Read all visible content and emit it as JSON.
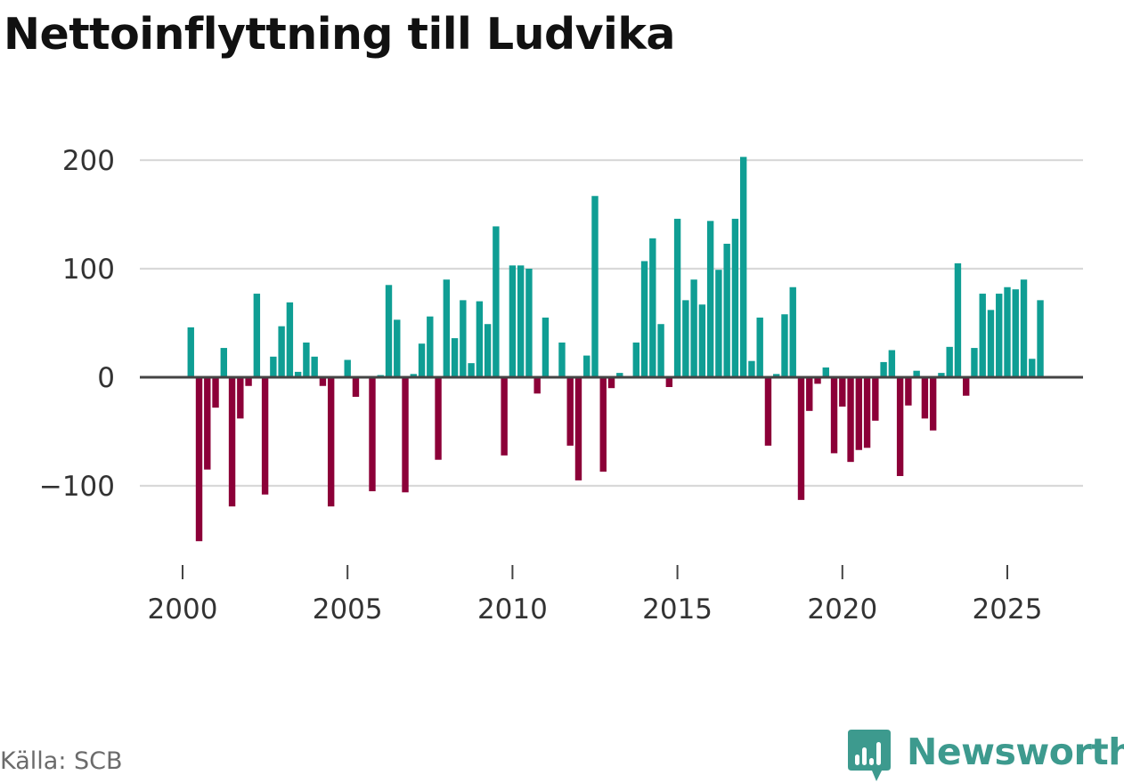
{
  "title": "Nettoinflyttning till Ludvika",
  "source": "Källa: SCB",
  "brand": {
    "name": "Newsworthy",
    "icon": "newsworthy-logo-icon",
    "color": "#3d9a8e"
  },
  "colors": {
    "positive": "#0f9e94",
    "negative": "#8c0038",
    "grid": "#d9d9d9",
    "baseline": "#444444",
    "axis_text": "#333333"
  },
  "chart_data": {
    "type": "bar",
    "title": "Nettoinflyttning till Ludvika",
    "xlabel": "",
    "ylabel": "",
    "frequency": "quarterly",
    "ylim": [
      -160,
      210
    ],
    "xlim": [
      1999.5,
      2027.3
    ],
    "yticks": [
      200,
      100,
      0,
      -100
    ],
    "ytick_labels": [
      "200",
      "100",
      "0",
      "−100"
    ],
    "xticks": [
      2000,
      2005,
      2010,
      2015,
      2020,
      2025
    ],
    "xtick_labels": [
      "2000",
      "2005",
      "2010",
      "2015",
      "2020",
      "2025"
    ],
    "grid": true,
    "x": [
      2000.25,
      2000.5,
      2000.75,
      2001.0,
      2001.25,
      2001.5,
      2001.75,
      2002.0,
      2002.25,
      2002.5,
      2002.75,
      2003.0,
      2003.25,
      2003.5,
      2003.75,
      2004.0,
      2004.25,
      2004.5,
      2004.75,
      2005.0,
      2005.25,
      2005.5,
      2005.75,
      2006.0,
      2006.25,
      2006.5,
      2006.75,
      2007.0,
      2007.25,
      2007.5,
      2007.75,
      2008.0,
      2008.25,
      2008.5,
      2008.75,
      2009.0,
      2009.25,
      2009.5,
      2009.75,
      2010.0,
      2010.25,
      2010.5,
      2010.75,
      2011.0,
      2011.25,
      2011.5,
      2011.75,
      2012.0,
      2012.25,
      2012.5,
      2012.75,
      2013.0,
      2013.25,
      2013.5,
      2013.75,
      2014.0,
      2014.25,
      2014.5,
      2014.75,
      2015.0,
      2015.25,
      2015.5,
      2015.75,
      2016.0,
      2016.25,
      2016.5,
      2016.75,
      2017.0,
      2017.25,
      2017.5,
      2017.75,
      2018.0,
      2018.25,
      2018.5,
      2018.75,
      2019.0,
      2019.25,
      2019.5,
      2019.75,
      2020.0,
      2020.25,
      2020.5,
      2020.75,
      2021.0,
      2021.25,
      2021.5,
      2021.75,
      2022.0,
      2022.25,
      2022.5,
      2022.75,
      2023.0,
      2023.25,
      2023.5,
      2023.75,
      2024.0,
      2024.25,
      2024.5,
      2024.75,
      2025.0,
      2025.25,
      2025.5,
      2025.75,
      2026.0
    ],
    "series": [
      {
        "name": "Nettoinflyttning",
        "values": [
          46,
          -151,
          -85,
          -28,
          27,
          -119,
          -38,
          -8,
          77,
          -108,
          19,
          47,
          69,
          5,
          32,
          19,
          -8,
          -119,
          0,
          16,
          -18,
          0,
          -105,
          2,
          85,
          53,
          -106,
          3,
          31,
          56,
          -76,
          90,
          36,
          71,
          13,
          70,
          49,
          139,
          -72,
          103,
          103,
          100,
          -15,
          55,
          0,
          32,
          -63,
          -95,
          20,
          167,
          -87,
          -10,
          4,
          0,
          32,
          107,
          128,
          49,
          -9,
          146,
          71,
          90,
          67,
          144,
          99,
          123,
          146,
          203,
          15,
          55,
          -63,
          3,
          58,
          83,
          -113,
          -31,
          -6,
          9,
          -70,
          -27,
          -78,
          -67,
          -65,
          -40,
          14,
          25,
          -91,
          -26,
          6,
          -38,
          -49,
          4,
          28,
          105,
          -17,
          27,
          77,
          62,
          77,
          83,
          81,
          90,
          17,
          71
        ]
      }
    ]
  }
}
